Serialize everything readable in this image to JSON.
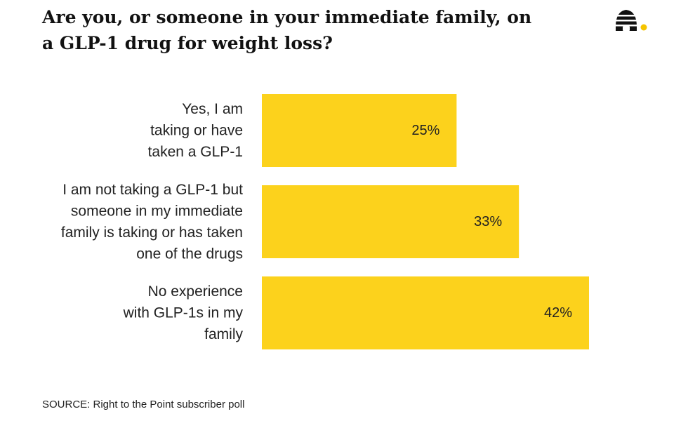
{
  "header": {
    "title": "Are you, or someone in your immediate family, on a GLP-1 drug for weight loss?"
  },
  "logo": {
    "icon": "beehive-icon",
    "dot_color": "#f5c400"
  },
  "chart_data": {
    "type": "bar",
    "orientation": "horizontal",
    "categories": [
      [
        "Yes, I am",
        "taking or have",
        "taken a GLP-1"
      ],
      [
        "I am not taking a GLP-1 but",
        "someone in my immediate",
        "family is taking or has taken",
        "one of the drugs"
      ],
      [
        "No experience",
        "with GLP-1s in my",
        "family"
      ]
    ],
    "values": [
      25,
      33,
      42
    ],
    "value_labels": [
      "25%",
      "33%",
      "42%"
    ],
    "unit": "%",
    "xlim": [
      0,
      42
    ],
    "bar_color": "#fcd21c",
    "grid": false,
    "legend": "none"
  },
  "footer": {
    "source": "SOURCE: Right to the Point subscriber poll"
  }
}
